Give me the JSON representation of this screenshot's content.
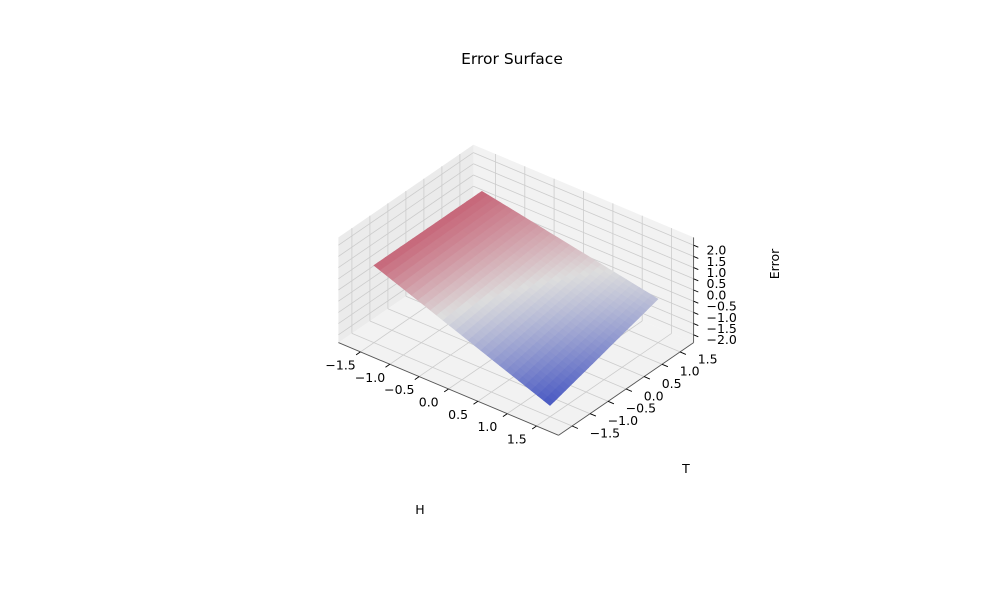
{
  "chart_data": {
    "type": "surface",
    "title": "Error Surface",
    "xlabel": "H",
    "ylabel": "T",
    "zlabel": "Error",
    "xlim": [
      -1.5,
      1.5
    ],
    "ylim": [
      -1.5,
      1.5
    ],
    "zlim": [
      -2.0,
      2.0
    ],
    "xticks": [
      "−1.5",
      "−1.0",
      "−0.5",
      "0.0",
      "0.5",
      "1.0",
      "1.5"
    ],
    "yticks": [
      "−1.5",
      "−1.0",
      "−0.5",
      "0.0",
      "0.5",
      "1.0",
      "1.5"
    ],
    "zticks": [
      "−2.0",
      "−1.5",
      "−1.0",
      "−0.5",
      "0.0",
      "0.5",
      "1.0",
      "1.5",
      "2.0"
    ],
    "grid": true,
    "colormap": "coolwarm",
    "surface_corners": [
      {
        "H": -1.5,
        "T": -1.5,
        "Error": 1.1
      },
      {
        "H": -1.5,
        "T": 1.5,
        "Error": 1.1
      },
      {
        "H": 1.5,
        "T": -1.5,
        "Error": -1.85
      },
      {
        "H": 1.5,
        "T": 1.5,
        "Error": -0.4
      }
    ],
    "surface_center": {
      "H": 0.0,
      "T": 0.0,
      "Error": 0.0
    }
  },
  "colors": {
    "pane": "#f2f2f2",
    "grid": "#cccccc",
    "axis": "#555555",
    "cmap_low": "#3b4cc0",
    "cmap_mid": "#dddddd",
    "cmap_high": "#b40426"
  }
}
